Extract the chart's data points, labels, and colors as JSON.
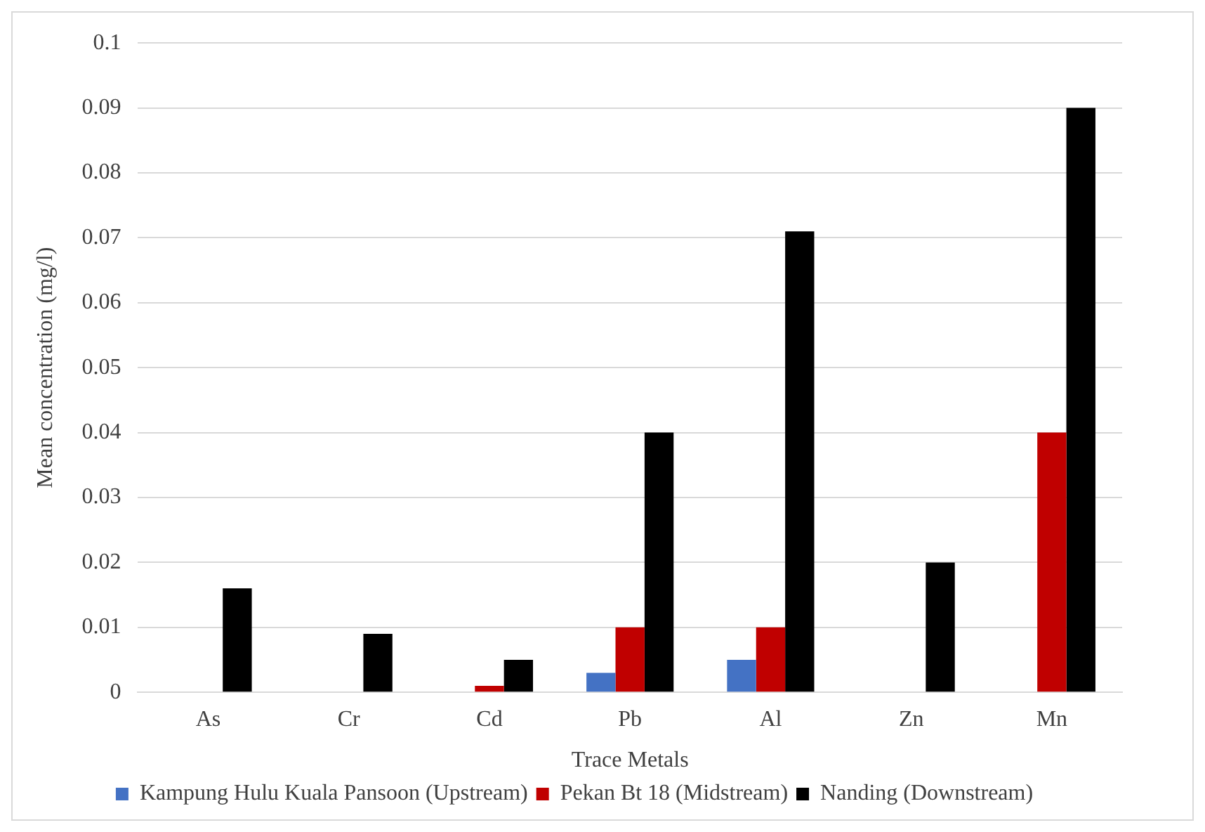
{
  "chart_data": {
    "type": "bar",
    "xlabel": "Trace Metals",
    "ylabel": "Mean concentration (mg/l)",
    "categories": [
      "As",
      "Cr",
      "Cd",
      "Pb",
      "Al",
      "Zn",
      "Mn"
    ],
    "series": [
      {
        "name": "Kampung Hulu Kuala Pansoon (Upstream)",
        "color": "#4472c4",
        "values": [
          0,
          0,
          0,
          0.003,
          0.005,
          0,
          0
        ]
      },
      {
        "name": "Pekan Bt 18 (Midstream)",
        "color": "#c00000",
        "values": [
          0,
          0,
          0.001,
          0.01,
          0.01,
          0,
          0.04
        ]
      },
      {
        "name": "Nanding (Downstream)",
        "color": "#000000",
        "values": [
          0.016,
          0.009,
          0.005,
          0.04,
          0.071,
          0.02,
          0.09
        ]
      }
    ],
    "ylim": [
      0,
      0.1
    ],
    "yticks": [
      0,
      0.01,
      0.02,
      0.03,
      0.04,
      0.05,
      0.06,
      0.07,
      0.08,
      0.09,
      0.1
    ],
    "grid": "y",
    "legend": "bottom"
  }
}
